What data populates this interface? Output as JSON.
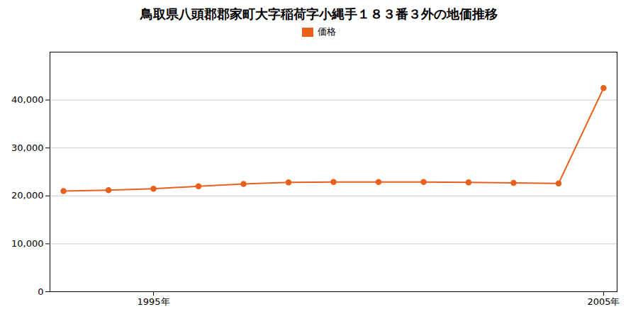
{
  "chart_data": {
    "type": "line",
    "title": "鳥取県八頭郡郡家町大字稲荷字小縄手１８３番３外の地価推移",
    "x": [
      1993,
      1994,
      1995,
      1996,
      1997,
      1998,
      1999,
      2000,
      2001,
      2002,
      2003,
      2004,
      2005
    ],
    "series": [
      {
        "name": "価格",
        "color": "#E8601C",
        "marker": "circle",
        "line_style": "solid",
        "values": [
          21000,
          21200,
          21500,
          22000,
          22500,
          22800,
          22900,
          22900,
          22900,
          22800,
          22700,
          22600,
          42500
        ]
      }
    ],
    "xlim": [
      1992.7,
      2005.3
    ],
    "xticks": [
      {
        "value": 1995,
        "label": "1995年"
      },
      {
        "value": 2005,
        "label": "2005年"
      }
    ],
    "ylim": [
      0,
      50000
    ],
    "yticks": [
      0,
      {
        "value": 10000,
        "label": "10,000"
      },
      {
        "value": 20000,
        "label": "20,000"
      },
      {
        "value": 30000,
        "label": "30,000"
      },
      {
        "value": 40000,
        "label": "40,000"
      }
    ],
    "grid": true,
    "legend": "top"
  }
}
